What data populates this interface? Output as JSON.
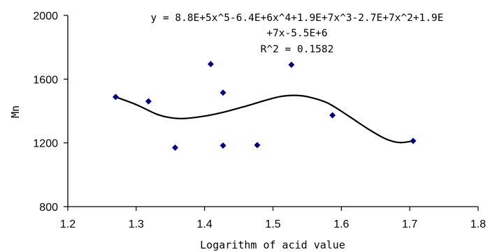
{
  "chart_data": {
    "type": "scatter",
    "xlabel": "Logarithm of acid value",
    "ylabel": "Mn",
    "xlim": [
      1.2,
      1.8
    ],
    "ylim": [
      800,
      2000
    ],
    "x_ticks": [
      "1.2",
      "1.3",
      "1.4",
      "1.5",
      "1.6",
      "1.7",
      "1.8"
    ],
    "y_ticks": [
      "800",
      "1200",
      "1600",
      "2000"
    ],
    "grid": false,
    "marker_color": "#00007f",
    "points": [
      {
        "x": 1.27,
        "y": 1488
      },
      {
        "x": 1.318,
        "y": 1461
      },
      {
        "x": 1.357,
        "y": 1170
      },
      {
        "x": 1.409,
        "y": 1694
      },
      {
        "x": 1.427,
        "y": 1515
      },
      {
        "x": 1.427,
        "y": 1183
      },
      {
        "x": 1.477,
        "y": 1186
      },
      {
        "x": 1.527,
        "y": 1690
      },
      {
        "x": 1.587,
        "y": 1373
      },
      {
        "x": 1.705,
        "y": 1212
      }
    ],
    "trendline": {
      "type": "polynomial",
      "order": 5,
      "x_range": [
        1.27,
        1.705
      ],
      "curve_points": [
        {
          "x": 1.27,
          "y": 1488
        },
        {
          "x": 1.3,
          "y": 1440
        },
        {
          "x": 1.33,
          "y": 1380
        },
        {
          "x": 1.35,
          "y": 1358
        },
        {
          "x": 1.37,
          "y": 1353
        },
        {
          "x": 1.4,
          "y": 1368
        },
        {
          "x": 1.43,
          "y": 1395
        },
        {
          "x": 1.46,
          "y": 1430
        },
        {
          "x": 1.49,
          "y": 1468
        },
        {
          "x": 1.51,
          "y": 1490
        },
        {
          "x": 1.53,
          "y": 1498
        },
        {
          "x": 1.55,
          "y": 1490
        },
        {
          "x": 1.58,
          "y": 1450
        },
        {
          "x": 1.61,
          "y": 1370
        },
        {
          "x": 1.64,
          "y": 1285
        },
        {
          "x": 1.665,
          "y": 1225
        },
        {
          "x": 1.685,
          "y": 1202
        },
        {
          "x": 1.705,
          "y": 1212
        }
      ],
      "equation_line1": "y = 8.8E+5x^5-6.4E+6x^4+1.9E+7x^3-2.7E+7x^2+1.9E",
      "equation_line2": "+7x-5.5E+6",
      "r_squared": "R^2 = 0.1582"
    }
  }
}
